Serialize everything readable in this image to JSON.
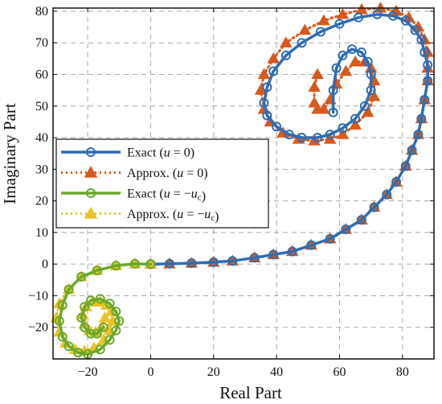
{
  "chart_data": {
    "type": "line",
    "xlabel": "Real Part",
    "ylabel": "Imaginary Part",
    "xlim": [
      -31,
      90
    ],
    "ylim": [
      -30,
      81
    ],
    "xticks": [
      -20,
      0,
      20,
      40,
      60,
      80
    ],
    "yticks": [
      -20,
      -10,
      0,
      10,
      20,
      30,
      40,
      50,
      60,
      70,
      80
    ],
    "xtick_labels": [
      "−20",
      "0",
      "20",
      "40",
      "60",
      "80"
    ],
    "ytick_labels": [
      "−20",
      "−10",
      "0",
      "10",
      "20",
      "30",
      "40",
      "50",
      "60",
      "70",
      "80"
    ],
    "grid": true,
    "legend_position": "center-left",
    "series": [
      {
        "name": "Exact (u = 0)",
        "legend": {
          "base": "Exact ",
          "italic": "u",
          "mid": " = 0",
          "sub": "",
          "end": ")"
        },
        "color": "#2e6db4",
        "style": "solid",
        "marker": "circle",
        "x": [
          0,
          6,
          13,
          20,
          26,
          33,
          39,
          45,
          51,
          57,
          62,
          67,
          71,
          75,
          78,
          81,
          83,
          85,
          86,
          87,
          88,
          88,
          87,
          86,
          84,
          81,
          77,
          72,
          66,
          60,
          54,
          48,
          43,
          39,
          37,
          36,
          37,
          40,
          44,
          48,
          53,
          57,
          61,
          65,
          68,
          70,
          70,
          69,
          67,
          64,
          61,
          59,
          58,
          58
        ],
        "y": [
          0,
          0.1,
          0.3,
          0.6,
          1,
          2,
          3,
          4,
          6,
          8,
          11,
          14,
          18,
          22,
          26,
          31,
          36,
          41,
          46,
          52,
          58,
          63,
          67,
          71,
          74,
          77,
          78.5,
          79,
          78,
          76,
          73.5,
          70,
          66,
          61,
          56,
          51,
          47,
          43.5,
          41,
          40,
          40,
          41,
          43,
          46,
          50,
          55,
          60,
          64,
          67,
          68,
          66,
          62,
          55,
          48
        ]
      },
      {
        "name": "Approx. (u = 0)",
        "legend": {
          "base": "Approx. ",
          "italic": "u",
          "mid": " = 0",
          "sub": "",
          "end": ")"
        },
        "color": "#d9581c",
        "style": "dotted",
        "marker": "triangle",
        "x": [
          0,
          6,
          13,
          20,
          26,
          33,
          39,
          45,
          51,
          57,
          62,
          67,
          71,
          75,
          78,
          81,
          83,
          85,
          86,
          87,
          88,
          88,
          88,
          87,
          85,
          82,
          78,
          73,
          67,
          61,
          55,
          49,
          43,
          39,
          36,
          35,
          36,
          38,
          42,
          47,
          52,
          57,
          61,
          65,
          69,
          71,
          71,
          70,
          68,
          65,
          62,
          59,
          57,
          55,
          53,
          52,
          52,
          53
        ],
        "y": [
          0,
          0.1,
          0.3,
          0.6,
          1,
          2,
          3,
          4,
          6,
          8,
          11,
          14,
          18,
          22,
          26,
          31,
          36,
          41,
          46,
          52,
          58,
          62,
          67,
          71,
          75,
          78,
          80,
          81,
          80.5,
          79,
          77,
          74,
          70,
          65,
          60,
          55,
          49,
          45,
          41.5,
          39.5,
          39,
          39.5,
          41,
          44,
          48,
          53,
          58,
          62,
          64,
          64,
          61,
          57,
          52,
          49,
          49,
          51,
          56,
          60
        ]
      },
      {
        "name": "Exact (u = -uc)",
        "legend": {
          "base": "Exact ",
          "italic": "u",
          "mid": " = −",
          "sub": "c",
          "end": ")"
        },
        "color": "#6aa82c",
        "style": "solid",
        "marker": "circle",
        "x": [
          0,
          -5,
          -11,
          -17,
          -22,
          -26,
          -28,
          -29,
          -28,
          -26,
          -23,
          -20,
          -16,
          -13,
          -11,
          -10,
          -11,
          -13,
          -16,
          -19,
          -21,
          -22,
          -21,
          -19,
          -17,
          -15
        ],
        "y": [
          0,
          0.1,
          -0.5,
          -2,
          -4,
          -8,
          -13,
          -18,
          -23,
          -26,
          -28,
          -28.5,
          -27,
          -24,
          -21,
          -18,
          -15,
          -12.5,
          -11,
          -11.5,
          -13.5,
          -17,
          -20,
          -22,
          -22,
          -20
        ]
      },
      {
        "name": "Approx. (u = -uc)",
        "legend": {
          "base": "Approx. ",
          "italic": "u",
          "mid": " = −",
          "sub": "c",
          "end": ")"
        },
        "color": "#e7c327",
        "style": "dotted",
        "marker": "triangle",
        "x": [
          0,
          -5,
          -11,
          -17,
          -22,
          -26,
          -29,
          -30,
          -29,
          -27,
          -24,
          -21,
          -18,
          -15,
          -13,
          -12,
          -12.5,
          -14,
          -16,
          -18.5,
          -20.5,
          -21.5,
          -21,
          -19.5,
          -17.5,
          -15.5,
          -14.5
        ],
        "y": [
          0,
          0.1,
          -0.5,
          -2,
          -4,
          -8,
          -12.5,
          -17,
          -21.5,
          -25,
          -27,
          -27.5,
          -26.5,
          -24,
          -21,
          -18,
          -15,
          -13,
          -12,
          -12,
          -13.5,
          -16,
          -19,
          -21,
          -21.5,
          -20,
          -17
        ]
      }
    ]
  }
}
